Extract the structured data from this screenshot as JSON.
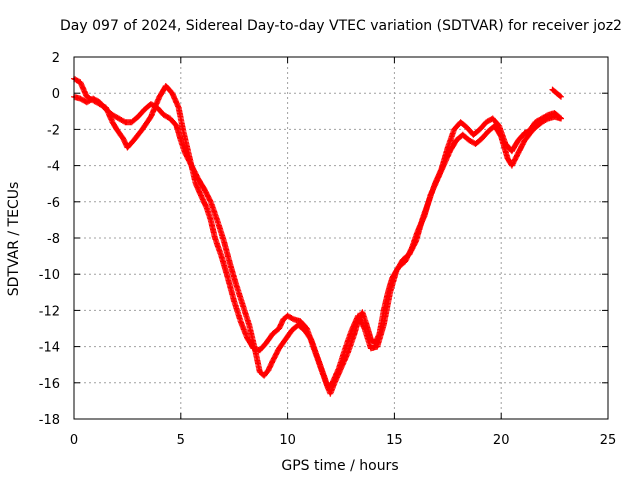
{
  "chart_data": {
    "type": "scatter",
    "title": "Day 097 of 2024, Sidereal Day-to-day VTEC variation (SDTVAR) for receiver joz2",
    "xlabel": "GPS time / hours",
    "ylabel": "SDTVAR / TECUs",
    "xlim": [
      0,
      25
    ],
    "ylim": [
      -18,
      2
    ],
    "xticks": [
      0,
      5,
      10,
      15,
      20,
      25
    ],
    "yticks": [
      2,
      0,
      -2,
      -4,
      -6,
      -8,
      -10,
      -12,
      -14,
      -16,
      -18
    ],
    "grid": true,
    "marker": "plus",
    "color": "#ff0000",
    "series": [
      {
        "values": [
          [
            0.0,
            0.8
          ],
          [
            0.3,
            0.6
          ],
          [
            0.6,
            -0.2
          ],
          [
            0.9,
            -0.4
          ],
          [
            1.2,
            -0.6
          ],
          [
            1.5,
            -0.8
          ],
          [
            1.8,
            -1.6
          ],
          [
            2.0,
            -2.0
          ],
          [
            2.3,
            -2.5
          ],
          [
            2.5,
            -3.0
          ],
          [
            2.8,
            -2.6
          ],
          [
            3.2,
            -2.0
          ],
          [
            3.6,
            -1.3
          ],
          [
            4.0,
            -0.2
          ],
          [
            4.3,
            0.4
          ],
          [
            4.6,
            0.0
          ],
          [
            4.9,
            -0.8
          ],
          [
            5.1,
            -2.0
          ],
          [
            5.4,
            -3.5
          ],
          [
            5.7,
            -5.0
          ],
          [
            6.0,
            -5.8
          ],
          [
            6.2,
            -6.3
          ],
          [
            6.4,
            -7.0
          ],
          [
            6.6,
            -8.0
          ],
          [
            6.9,
            -9.0
          ],
          [
            7.2,
            -10.2
          ],
          [
            7.5,
            -11.5
          ],
          [
            7.8,
            -12.6
          ],
          [
            8.1,
            -13.5
          ],
          [
            8.4,
            -14.1
          ],
          [
            8.7,
            -14.2
          ],
          [
            9.0,
            -13.8
          ],
          [
            9.3,
            -13.3
          ],
          [
            9.6,
            -13.0
          ],
          [
            9.8,
            -12.5
          ],
          [
            10.0,
            -12.3
          ],
          [
            10.3,
            -12.5
          ],
          [
            10.6,
            -12.6
          ],
          [
            10.9,
            -13.0
          ],
          [
            11.2,
            -14.0
          ],
          [
            11.5,
            -15.0
          ],
          [
            11.8,
            -16.0
          ],
          [
            12.0,
            -16.6
          ],
          [
            12.2,
            -16.0
          ],
          [
            12.5,
            -15.2
          ],
          [
            12.8,
            -14.4
          ],
          [
            13.1,
            -13.4
          ],
          [
            13.3,
            -12.6
          ],
          [
            13.5,
            -12.1
          ],
          [
            13.7,
            -12.8
          ],
          [
            13.9,
            -13.6
          ],
          [
            14.1,
            -13.8
          ],
          [
            14.3,
            -13.3
          ],
          [
            14.5,
            -12.0
          ],
          [
            14.7,
            -11.0
          ],
          [
            14.9,
            -10.2
          ],
          [
            15.2,
            -9.6
          ],
          [
            15.5,
            -9.3
          ],
          [
            15.8,
            -8.6
          ],
          [
            16.1,
            -7.6
          ],
          [
            16.4,
            -6.8
          ],
          [
            16.7,
            -5.6
          ],
          [
            17.0,
            -4.8
          ],
          [
            17.3,
            -4.0
          ],
          [
            17.6,
            -3.2
          ],
          [
            17.9,
            -2.6
          ],
          [
            18.2,
            -2.3
          ],
          [
            18.5,
            -2.6
          ],
          [
            18.8,
            -2.8
          ],
          [
            19.1,
            -2.5
          ],
          [
            19.4,
            -2.1
          ],
          [
            19.7,
            -1.8
          ],
          [
            20.0,
            -2.4
          ],
          [
            20.3,
            -3.6
          ],
          [
            20.5,
            -4.0
          ],
          [
            20.8,
            -3.3
          ],
          [
            21.1,
            -2.6
          ],
          [
            21.5,
            -2.0
          ],
          [
            21.9,
            -1.6
          ],
          [
            22.2,
            -1.4
          ],
          [
            22.5,
            -1.3
          ],
          [
            22.8,
            -1.4
          ]
        ]
      },
      {
        "values": [
          [
            0.0,
            -0.2
          ],
          [
            0.3,
            -0.3
          ],
          [
            0.6,
            -0.5
          ],
          [
            0.9,
            -0.3
          ],
          [
            1.2,
            -0.5
          ],
          [
            1.5,
            -0.9
          ],
          [
            1.8,
            -1.2
          ],
          [
            2.1,
            -1.4
          ],
          [
            2.4,
            -1.6
          ],
          [
            2.7,
            -1.6
          ],
          [
            3.0,
            -1.3
          ],
          [
            3.3,
            -0.9
          ],
          [
            3.6,
            -0.6
          ],
          [
            3.9,
            -0.8
          ],
          [
            4.2,
            -1.2
          ],
          [
            4.5,
            -1.4
          ],
          [
            4.8,
            -1.8
          ],
          [
            5.0,
            -2.6
          ],
          [
            5.2,
            -3.3
          ],
          [
            5.5,
            -4.0
          ],
          [
            5.8,
            -4.7
          ],
          [
            6.1,
            -5.3
          ],
          [
            6.4,
            -6.0
          ],
          [
            6.7,
            -7.0
          ],
          [
            7.0,
            -8.1
          ],
          [
            7.3,
            -9.4
          ],
          [
            7.6,
            -10.6
          ],
          [
            7.9,
            -11.7
          ],
          [
            8.2,
            -12.8
          ],
          [
            8.5,
            -14.3
          ],
          [
            8.7,
            -15.4
          ],
          [
            8.9,
            -15.6
          ],
          [
            9.1,
            -15.3
          ],
          [
            9.3,
            -14.8
          ],
          [
            9.6,
            -14.1
          ],
          [
            9.9,
            -13.6
          ],
          [
            10.2,
            -13.1
          ],
          [
            10.5,
            -12.8
          ],
          [
            10.8,
            -13.1
          ],
          [
            11.1,
            -13.6
          ],
          [
            11.4,
            -14.6
          ],
          [
            11.7,
            -15.6
          ],
          [
            11.9,
            -16.3
          ],
          [
            12.1,
            -16.0
          ],
          [
            12.4,
            -15.2
          ],
          [
            12.7,
            -14.1
          ],
          [
            13.0,
            -13.1
          ],
          [
            13.3,
            -12.3
          ],
          [
            13.6,
            -13.0
          ],
          [
            13.9,
            -14.1
          ],
          [
            14.2,
            -14.0
          ],
          [
            14.5,
            -12.8
          ],
          [
            14.8,
            -11.0
          ],
          [
            15.1,
            -9.8
          ],
          [
            15.4,
            -9.2
          ],
          [
            15.7,
            -8.9
          ],
          [
            16.0,
            -8.2
          ],
          [
            16.3,
            -7.0
          ],
          [
            16.6,
            -6.0
          ],
          [
            16.9,
            -5.0
          ],
          [
            17.2,
            -4.2
          ],
          [
            17.5,
            -3.0
          ],
          [
            17.8,
            -2.0
          ],
          [
            18.1,
            -1.6
          ],
          [
            18.4,
            -1.9
          ],
          [
            18.7,
            -2.3
          ],
          [
            19.0,
            -2.0
          ],
          [
            19.3,
            -1.6
          ],
          [
            19.6,
            -1.4
          ],
          [
            19.9,
            -1.8
          ],
          [
            20.2,
            -2.8
          ],
          [
            20.5,
            -3.2
          ],
          [
            20.8,
            -2.6
          ],
          [
            21.1,
            -2.2
          ],
          [
            21.3,
            -2.1
          ],
          [
            21.6,
            -1.6
          ],
          [
            21.9,
            -1.4
          ],
          [
            22.2,
            -1.2
          ],
          [
            22.5,
            -1.1
          ],
          [
            22.8,
            -1.4
          ]
        ]
      },
      {
        "values": [
          [
            22.4,
            0.2
          ],
          [
            22.6,
            0.0
          ],
          [
            22.8,
            -0.2
          ]
        ]
      }
    ]
  }
}
